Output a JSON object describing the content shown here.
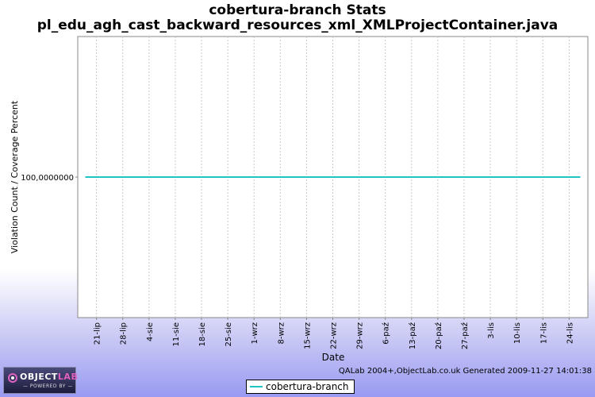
{
  "chart_data": {
    "type": "line",
    "title": "cobertura-branch  Stats",
    "subtitle": "pl_edu_agh_cast_backward_resources_xml_XMLProjectContainer.java",
    "xlabel": "Date",
    "ylabel": "Violation Count / Coverage Percent",
    "x_tick_labels": [
      "21-lip",
      "28-lip",
      "4-sie",
      "11-sie",
      "18-sie",
      "25-sie",
      "1-wrz",
      "8-wrz",
      "15-wrz",
      "22-wrz",
      "29-wrz",
      "6-paź",
      "13-paź",
      "20-paź",
      "27-paź",
      "3-lis",
      "10-lis",
      "17-lis",
      "24-lis"
    ],
    "y_tick_labels": [
      "100,0000000"
    ],
    "xlim": [
      "2009-07-16",
      "2009-11-29"
    ],
    "series": [
      {
        "name": "cobertura-branch",
        "color": "#1fc4c4",
        "x": [
          "2009-07-18",
          "2009-11-27"
        ],
        "y": [
          100,
          100
        ]
      }
    ],
    "legend_position": "bottom-center",
    "grid": true
  },
  "footer": {
    "text": "QALab 2004+,ObjectLab.co.uk Generated 2009-11-27 14:01:38"
  },
  "logo": {
    "name_part1": "OBJECT",
    "name_part2": "LAB",
    "tagline": "— POWERED BY —"
  }
}
